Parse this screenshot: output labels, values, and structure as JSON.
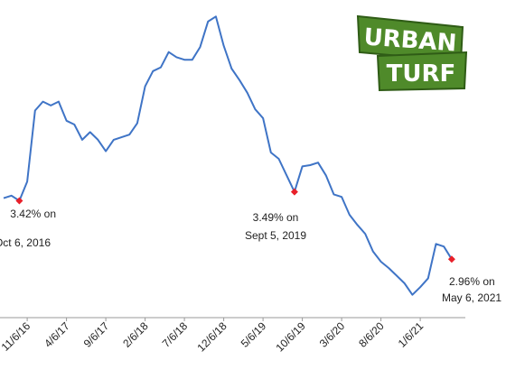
{
  "chart_data": {
    "type": "line",
    "categories": [
      null,
      null,
      null,
      "11/6/16",
      null,
      null,
      null,
      null,
      "4/6/17",
      null,
      null,
      null,
      null,
      "9/6/17",
      null,
      null,
      null,
      null,
      "2/6/18",
      null,
      null,
      null,
      null,
      "7/6/18",
      null,
      null,
      null,
      null,
      "12/6/18",
      null,
      null,
      null,
      null,
      "5/6/19",
      null,
      null,
      null,
      null,
      "10/6/19",
      null,
      null,
      null,
      null,
      "3/6/20",
      null,
      null,
      null,
      null,
      "8/6/20",
      null,
      null,
      null,
      null,
      "1/6/21",
      null,
      null,
      null,
      null
    ],
    "series": [
      {
        "color": "#3f74c6",
        "values": [
          3.44,
          3.46,
          3.42,
          3.57,
          4.13,
          4.2,
          4.17,
          4.2,
          4.05,
          4.02,
          3.9,
          3.96,
          3.9,
          3.81,
          3.9,
          3.92,
          3.94,
          4.03,
          4.32,
          4.44,
          4.47,
          4.59,
          4.55,
          4.53,
          4.53,
          4.63,
          4.83,
          4.87,
          4.64,
          4.46,
          4.37,
          4.27,
          4.14,
          4.07,
          3.8,
          3.75,
          3.62,
          3.49,
          3.69,
          3.7,
          3.72,
          3.62,
          3.47,
          3.45,
          3.31,
          3.23,
          3.16,
          3.02,
          2.94,
          2.89,
          2.83,
          2.77,
          2.68,
          2.74,
          2.81,
          3.08,
          3.06,
          2.96
        ]
      }
    ],
    "ylim": [
      2.5,
      5.0
    ],
    "marker_color": "#e8202a",
    "annotations": [
      [
        "3.42% on",
        "Oct 6, 2016"
      ],
      [
        "3.49% on",
        "Sept 5, 2019"
      ],
      [
        "2.96% on",
        "May 6, 2021"
      ]
    ]
  },
  "logo": {
    "top": "URBAN",
    "bottom": "TURF"
  }
}
